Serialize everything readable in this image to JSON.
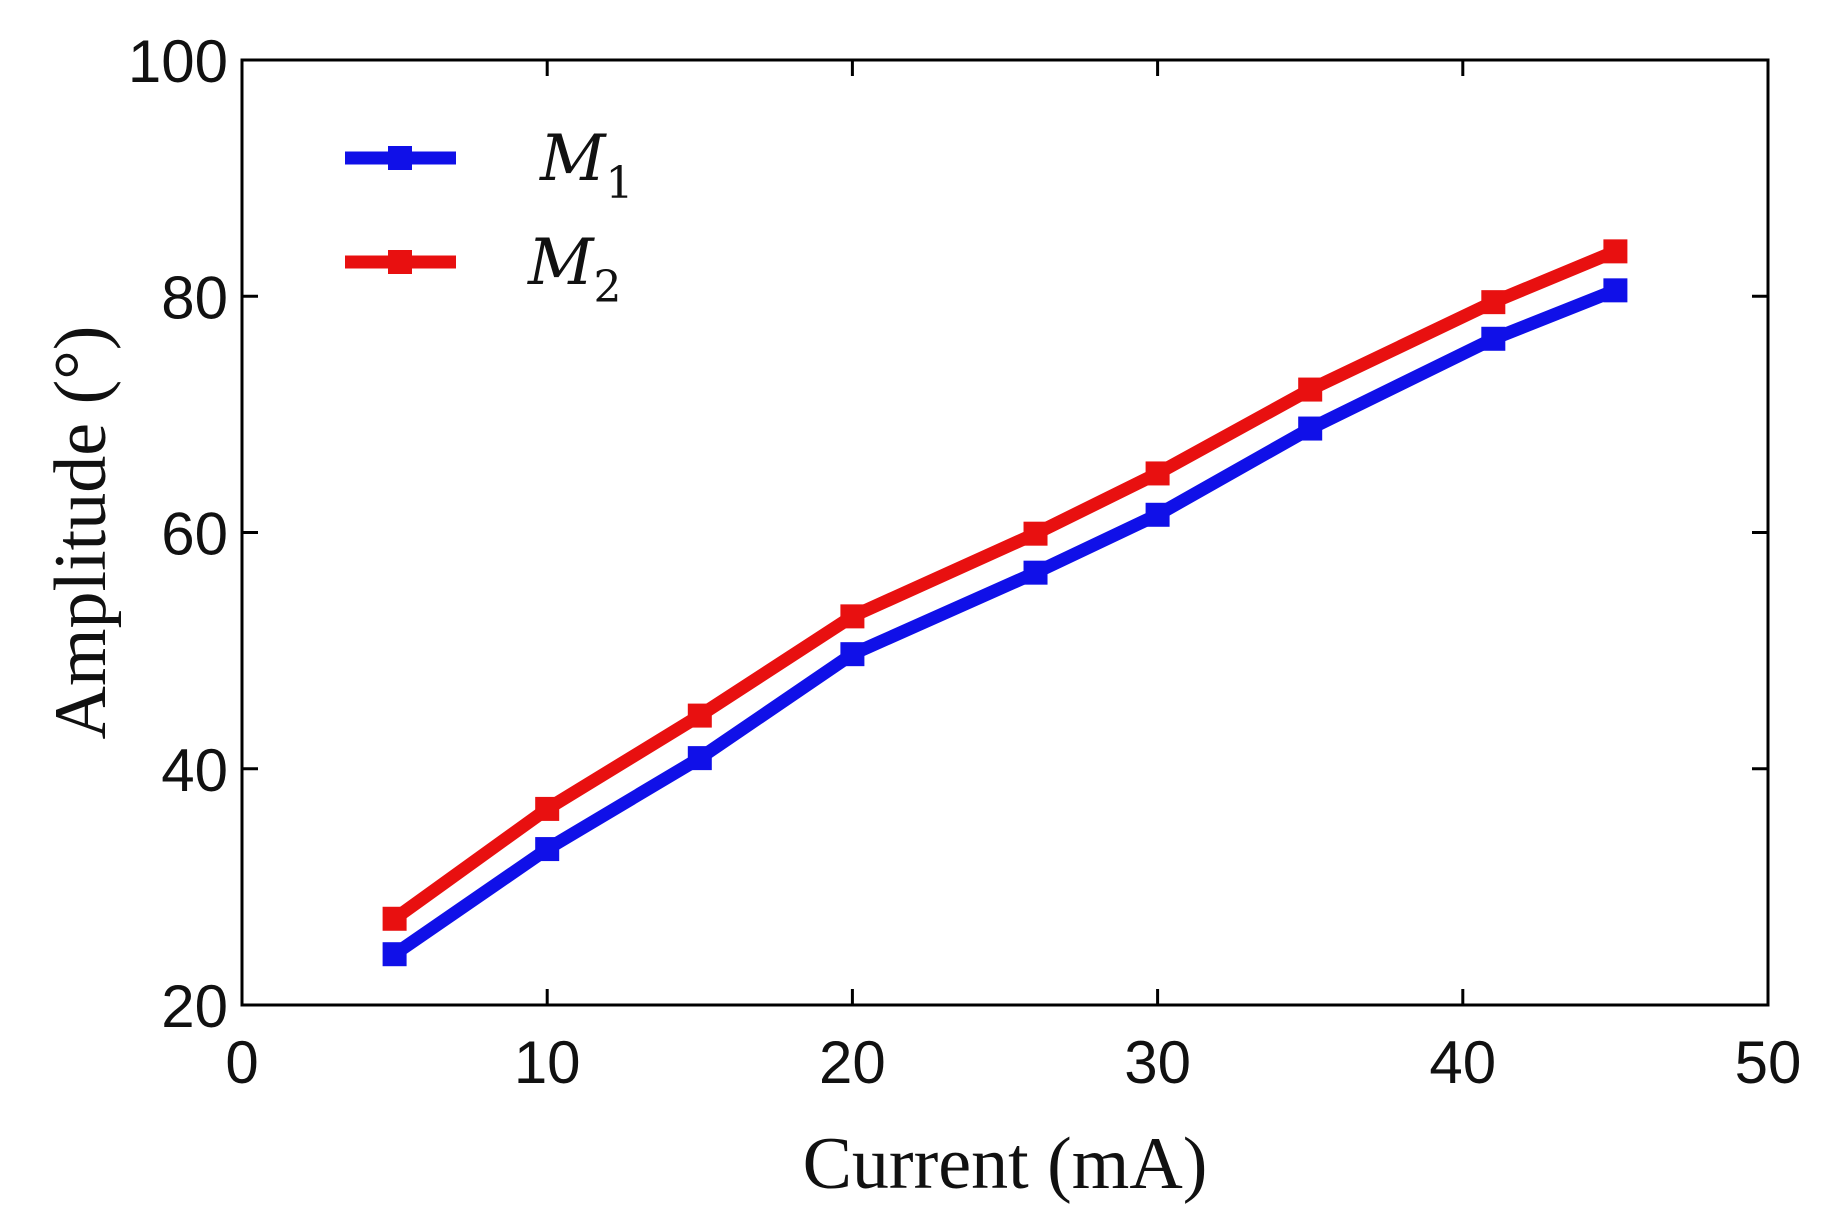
{
  "chart_data": {
    "type": "line",
    "title": "",
    "xlabel": "Current (mA)",
    "ylabel": "Amplitude (°)",
    "xlim": [
      0,
      50
    ],
    "ylim": [
      20,
      100
    ],
    "xticks": [
      0,
      10,
      20,
      30,
      40,
      50
    ],
    "yticks": [
      20,
      40,
      60,
      80,
      100
    ],
    "xtick_labels": [
      "0",
      "10",
      "20",
      "30",
      "40",
      "50"
    ],
    "ytick_labels": [
      "20",
      "40",
      "60",
      "80",
      "100"
    ],
    "grid": false,
    "legend_position": "top-left",
    "x": [
      5,
      10,
      15,
      20,
      26,
      30,
      35,
      41,
      45
    ],
    "series": [
      {
        "name": "M",
        "subscript": "1",
        "color": "#1010e8",
        "values": [
          24.3,
          33.2,
          40.9,
          49.7,
          56.6,
          61.5,
          68.8,
          76.4,
          80.5
        ]
      },
      {
        "name": "M",
        "subscript": "2",
        "color": "#e81010",
        "values": [
          27.3,
          36.6,
          44.5,
          52.9,
          59.9,
          65.0,
          72.1,
          79.5,
          83.8
        ]
      }
    ]
  }
}
